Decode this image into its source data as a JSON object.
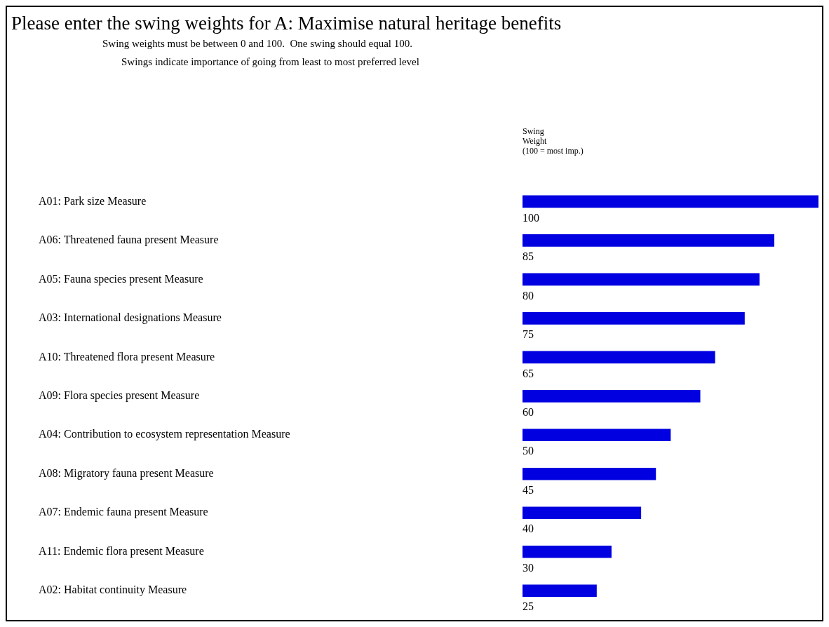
{
  "chart_data": {
    "type": "bar",
    "orientation": "horizontal",
    "title": "Please enter the swing weights for A: Maximise natural heritage benefits",
    "subtitle": "Swing weights must be between 0 and 100.  One swing should equal 100.",
    "annotations": [
      "Swings indicate importance of going from least to most preferred level"
    ],
    "xlabel": "Swing\nWeight\n(100 = most imp.)",
    "categories": [
      "A01: Park size Measure",
      "A06: Threatened fauna present Measure",
      "A05: Fauna species present Measure",
      "A03: International designations Measure",
      "A10: Threatened flora present Measure",
      "A09: Flora species present Measure",
      "A04: Contribution to ecosystem representation Measure",
      "A08: Migratory fauna present Measure",
      "A07: Endemic fauna present Measure",
      "A11: Endemic flora present Measure",
      "A02: Habitat continuity Measure"
    ],
    "values": [
      100,
      85,
      80,
      75,
      65,
      60,
      50,
      45,
      40,
      30,
      25
    ],
    "color": "#0000e0",
    "xlim": [
      0,
      100
    ],
    "tick_labels": "y",
    "data_labels": true,
    "legend": false
  }
}
